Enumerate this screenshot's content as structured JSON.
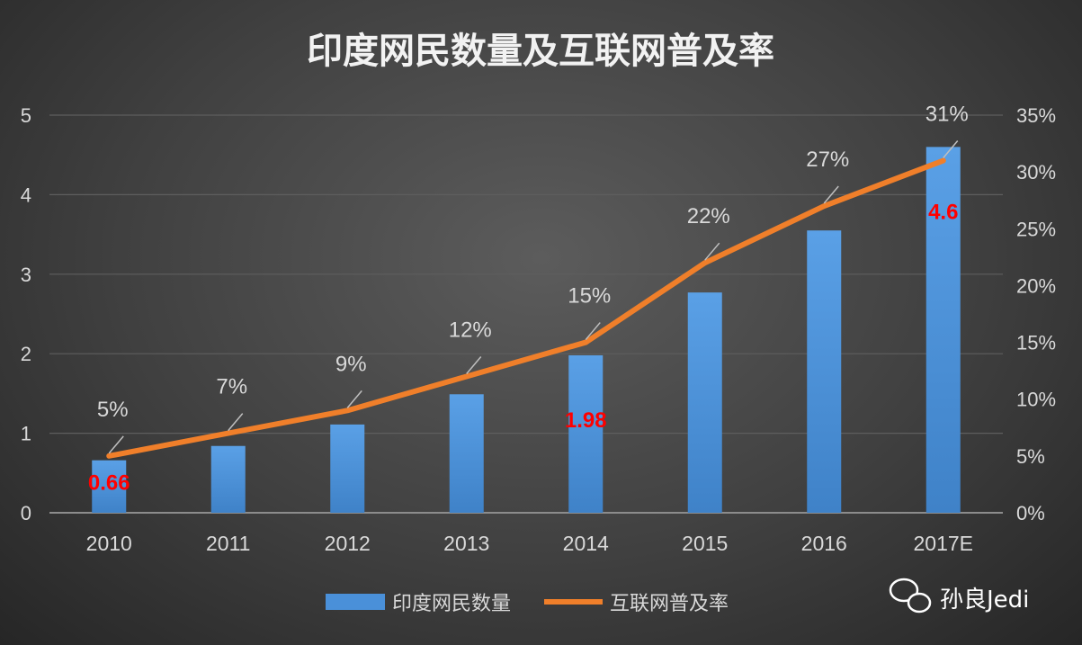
{
  "chart_data": {
    "type": "bar+line",
    "title": "印度网民数量及互联网普及率",
    "categories": [
      "2010",
      "2011",
      "2012",
      "2013",
      "2014",
      "2015",
      "2016",
      "2017E"
    ],
    "series": [
      {
        "name": "印度网民数量",
        "type": "bar",
        "axis": "left",
        "color": "#4a90d9",
        "values": [
          0.66,
          0.84,
          1.11,
          1.49,
          1.98,
          2.77,
          3.55,
          4.6
        ]
      },
      {
        "name": "互联网普及率",
        "type": "line",
        "axis": "right",
        "color": "#f07f2a",
        "values": [
          5,
          7,
          9,
          12,
          15,
          22,
          27,
          31
        ]
      }
    ],
    "bar_data_labels": [
      {
        "index": 0,
        "text": "0.66"
      },
      {
        "index": 4,
        "text": "1.98"
      },
      {
        "index": 7,
        "text": "4.6"
      }
    ],
    "line_data_labels": [
      "5%",
      "7%",
      "9%",
      "12%",
      "15%",
      "22%",
      "27%",
      "31%"
    ],
    "left_axis": {
      "ylim": [
        0,
        5
      ],
      "ticks": [
        "0",
        "1",
        "2",
        "3",
        "4",
        "5"
      ]
    },
    "right_axis": {
      "ylim": [
        0,
        35
      ],
      "ticks": [
        "0%",
        "5%",
        "10%",
        "15%",
        "20%",
        "25%",
        "30%",
        "35%"
      ]
    },
    "grid": true,
    "legend": {
      "placement": "bottom",
      "entries": [
        "印度网民数量",
        "互联网普及率"
      ]
    },
    "label_color": "#ff0000"
  },
  "watermark": "孙良Jedi"
}
